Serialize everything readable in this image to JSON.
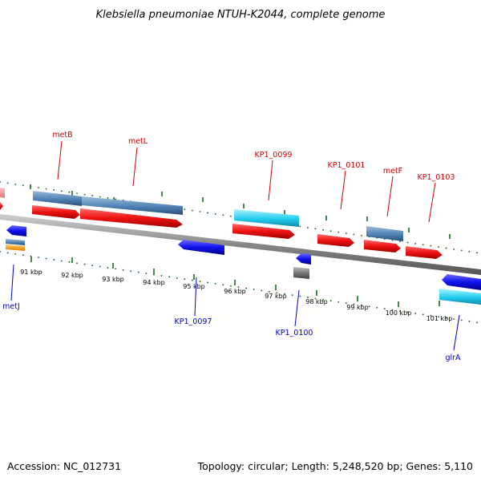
{
  "title": "Klebsiella pneumoniae NTUH-K2044, complete genome",
  "footer": {
    "accession": "Accession: NC_012731",
    "summary": "Topology: circular; Length: 5,248,520 bp; Genes: 5,110"
  },
  "colors": {
    "cds_forward": "#ee1111",
    "cds_reverse": "#1111ee",
    "gene_forward": "#4f82b5",
    "gene_cyan": "#22ccee",
    "pseudo_grey": "#777777",
    "backbone": "#888888",
    "tick_green": "#1a6b1a",
    "label_top": "#cc0000",
    "label_bottom": "#0000cc"
  },
  "ruler": {
    "unit": "kbp",
    "labels": [
      "91 kbp",
      "92 kbp",
      "93 kbp",
      "94 kbp",
      "95 kbp",
      "96 kbp",
      "97 kbp",
      "98 kbp",
      "99 kbp",
      "100 kbp",
      "101 kbp"
    ]
  },
  "gene_labels_top": [
    "metB",
    "metL",
    "KP1_0099",
    "KP1_0101",
    "metF",
    "KP1_0103"
  ],
  "gene_labels_bottom": [
    "metJ",
    "KP1_0097",
    "KP1_0100",
    "glrA"
  ]
}
